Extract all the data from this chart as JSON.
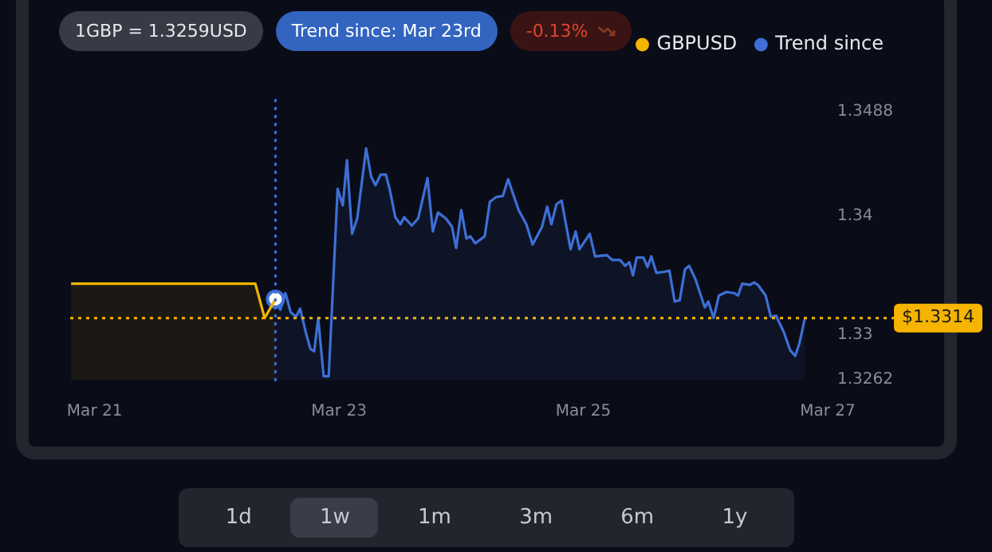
{
  "chart_data": {
    "type": "area",
    "legend": "top right",
    "grid": false,
    "marker": "none",
    "xlim": [
      "--03-20T19:12",
      "--03-27T00:00"
    ],
    "xticks": [
      {
        "value": "--03-21",
        "label": "Mar 21"
      },
      {
        "value": "--03-23",
        "label": "Mar 23"
      },
      {
        "value": "--03-25",
        "label": "Mar 25"
      },
      {
        "value": "--03-27",
        "label": "Mar 27"
      }
    ],
    "ylim": [
      1.3262,
      1.3488
    ],
    "yticks": [
      1.3262,
      1.33,
      1.34,
      1.3488
    ],
    "series": [
      {
        "name": "GBPUSD",
        "color": "#f5b400",
        "x": [
          "--03-20T19:23",
          "--03-22T07:34",
          "--03-22T09:24",
          "--03-22T11:31"
        ],
        "values": [
          1.3343,
          1.3343,
          1.3314,
          1.333
        ]
      },
      {
        "name": "Trend since",
        "color": "#3d6fd6",
        "x": [
          "--03-22T11:31",
          "--03-22T12:29",
          "--03-22T13:29",
          "--03-22T14:30",
          "--03-22T15:33",
          "--03-22T16:22",
          "--03-22T17:36",
          "--03-22T18:23",
          "--03-22T19:08",
          "--03-22T19:55",
          "--03-22T20:59",
          "--03-22T21:59",
          "--03-22T23:44",
          "--03-23T00:45",
          "--03-23T01:34",
          "--03-23T02:34",
          "--03-23T03:35",
          "--03-23T05:20",
          "--03-23T06:20",
          "--03-23T07:11",
          "--03-23T08:11",
          "--03-23T09:13",
          "--03-23T09:56",
          "--03-23T11:04",
          "--03-23T12:04",
          "--03-23T12:48",
          "--03-23T14:18",
          "--03-23T15:33",
          "--03-23T17:23",
          "--03-23T18:26",
          "--03-23T19:26",
          "--03-23T20:59",
          "--03-23T22:12",
          "--03-23T23:01",
          "--03-24T00:01",
          "--03-24T01:02",
          "--03-24T01:47",
          "--03-24T02:47",
          "--03-24T04:38",
          "--03-24T05:38",
          "--03-24T06:52",
          "--03-24T08:12",
          "--03-24T09:13",
          "--03-24T11:17",
          "--03-24T12:49",
          "--03-24T14:02",
          "--03-24T15:53",
          "--03-24T16:54",
          "--03-24T17:43",
          "--03-24T18:43",
          "--03-24T19:44",
          "--03-24T21:29",
          "--03-24T22:29",
          "--03-24T23:14",
          "--03-25T01:15",
          "--03-25T02:18",
          "--03-25T04:38",
          "--03-25T05:40",
          "--03-25T07:12",
          "--03-25T08:12",
          "--03-25T09:03",
          "--03-25T09:45",
          "--03-25T10:28",
          "--03-25T11:48",
          "--03-25T12:36",
          "--03-25T13:21",
          "--03-25T14:21",
          "--03-25T15:53",
          "--03-25T16:54",
          "--03-25T17:56",
          "--03-25T18:56",
          "--03-25T19:57",
          "--03-25T20:47",
          "--03-25T22:00",
          "--03-25T23:51",
          "--03-26T00:33",
          "--03-26T01:35",
          "--03-26T02:37",
          "--03-26T04:08",
          "--03-26T05:40",
          "--03-26T06:23",
          "--03-26T07:12",
          "--03-26T08:44",
          "--03-26T09:33",
          "--03-26T10:16",
          "--03-26T11:48",
          "--03-26T12:49",
          "--03-26T13:51",
          "--03-26T15:23",
          "--03-26T16:36",
          "--03-26T17:37",
          "--03-26T18:27",
          "--03-26T19:28"
        ],
        "values": [
          1.333,
          1.3321,
          1.3335,
          1.3319,
          1.3315,
          1.3322,
          1.33,
          1.3288,
          1.3286,
          1.3314,
          1.3265,
          1.3265,
          1.3423,
          1.3409,
          1.3447,
          1.3385,
          1.3398,
          1.3457,
          1.3433,
          1.3426,
          1.3435,
          1.3435,
          1.3423,
          1.3399,
          1.3393,
          1.3399,
          1.3392,
          1.3398,
          1.3432,
          1.3387,
          1.3403,
          1.3398,
          1.3391,
          1.3373,
          1.3405,
          1.3381,
          1.3383,
          1.3377,
          1.3383,
          1.3412,
          1.3416,
          1.3417,
          1.3431,
          1.3405,
          1.3393,
          1.3376,
          1.3391,
          1.3408,
          1.3393,
          1.341,
          1.3413,
          1.3372,
          1.3387,
          1.3372,
          1.3385,
          1.3366,
          1.3367,
          1.3363,
          1.3363,
          1.3358,
          1.3361,
          1.335,
          1.3365,
          1.3365,
          1.3357,
          1.3366,
          1.3352,
          1.3353,
          1.3354,
          1.3328,
          1.3329,
          1.3355,
          1.3358,
          1.3347,
          1.3323,
          1.3328,
          1.3314,
          1.3333,
          1.3336,
          1.3335,
          1.3333,
          1.3343,
          1.3342,
          1.3344,
          1.3342,
          1.3333,
          1.3315,
          1.3316,
          1.3302,
          1.3287,
          1.3282,
          1.3293,
          1.3313
        ]
      }
    ],
    "ref_lines": [
      {
        "axis": "y",
        "value": 1.3314,
        "label": "$1.3314",
        "color": "#f5b400",
        "line_style": "dotted"
      },
      {
        "axis": "x",
        "value": "--03-22T11:31",
        "label": null,
        "color": "#3d6fd6",
        "line_style": "dotted"
      }
    ],
    "annotations": [
      "1GBP = 1.3259USD",
      "Trend since: Mar 23rd",
      "-0.13%",
      "1d",
      "1w",
      "1m",
      "3m",
      "6m",
      "1y"
    ]
  }
}
